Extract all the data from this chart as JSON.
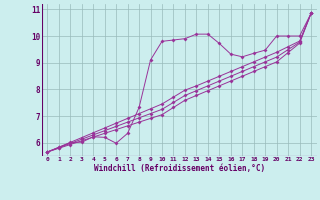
{
  "xlabel": "Windchill (Refroidissement éolien,°C)",
  "background_color": "#cceeee",
  "line_color": "#993399",
  "grid_color": "#99bbbb",
  "xlim": [
    -0.5,
    23.5
  ],
  "ylim": [
    5.5,
    11.2
  ],
  "xticks": [
    0,
    1,
    2,
    3,
    4,
    5,
    6,
    7,
    8,
    9,
    10,
    11,
    12,
    13,
    14,
    15,
    16,
    17,
    18,
    19,
    20,
    21,
    22,
    23
  ],
  "yticks": [
    6,
    7,
    8,
    9,
    10,
    11
  ],
  "series1_x": [
    0,
    1,
    2,
    3,
    4,
    5,
    6,
    7,
    8,
    9,
    10,
    11,
    12,
    13,
    14,
    15,
    16,
    17,
    18,
    19,
    20,
    21,
    22,
    23
  ],
  "series1_y": [
    5.65,
    5.82,
    6.0,
    6.02,
    6.22,
    6.2,
    5.98,
    6.35,
    7.32,
    9.1,
    9.8,
    9.85,
    9.9,
    10.07,
    10.07,
    9.72,
    9.32,
    9.22,
    9.35,
    9.47,
    10.0,
    10.0,
    10.0,
    10.85
  ],
  "series2_x": [
    0,
    1,
    2,
    3,
    4,
    5,
    6,
    7,
    8,
    9,
    10,
    11,
    12,
    13,
    14,
    15,
    16,
    17,
    18,
    19,
    20,
    21,
    22,
    23
  ],
  "series2_y": [
    5.65,
    5.79,
    5.93,
    6.07,
    6.21,
    6.35,
    6.49,
    6.63,
    6.77,
    6.91,
    7.05,
    7.32,
    7.59,
    7.77,
    7.95,
    8.13,
    8.31,
    8.49,
    8.67,
    8.85,
    9.03,
    9.38,
    9.73,
    10.85
  ],
  "series3_x": [
    0,
    1,
    2,
    3,
    4,
    5,
    6,
    7,
    8,
    9,
    10,
    11,
    12,
    13,
    14,
    15,
    16,
    17,
    18,
    19,
    20,
    21,
    22,
    23
  ],
  "series3_y": [
    5.65,
    5.81,
    5.97,
    6.13,
    6.29,
    6.45,
    6.61,
    6.77,
    6.93,
    7.09,
    7.25,
    7.51,
    7.77,
    7.95,
    8.13,
    8.31,
    8.49,
    8.67,
    8.85,
    9.03,
    9.21,
    9.49,
    9.77,
    10.85
  ],
  "series4_x": [
    0,
    1,
    2,
    3,
    4,
    5,
    6,
    7,
    8,
    9,
    10,
    11,
    12,
    13,
    14,
    15,
    16,
    17,
    18,
    19,
    20,
    21,
    22,
    23
  ],
  "series4_y": [
    5.65,
    5.83,
    6.01,
    6.19,
    6.37,
    6.55,
    6.73,
    6.91,
    7.09,
    7.27,
    7.45,
    7.71,
    7.97,
    8.13,
    8.31,
    8.49,
    8.67,
    8.85,
    9.03,
    9.21,
    9.39,
    9.6,
    9.81,
    10.85
  ]
}
